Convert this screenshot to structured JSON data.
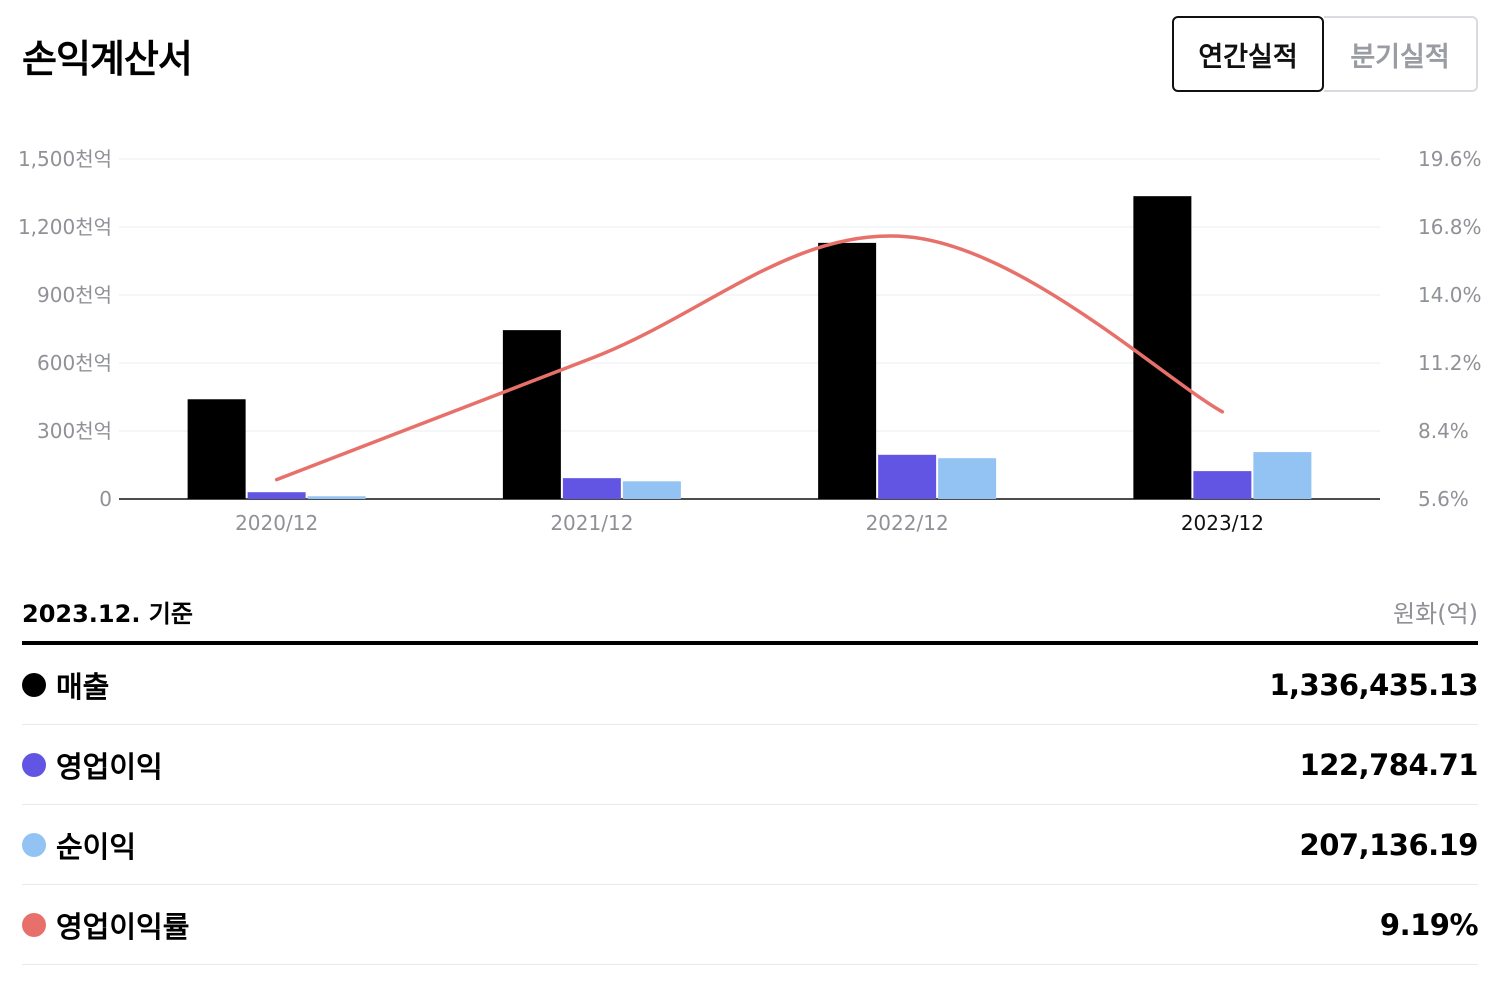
{
  "header": {
    "title": "손익계산서",
    "tabs": [
      "연간실적",
      "분기실적"
    ]
  },
  "colors": {
    "revenue": "#000000",
    "operating_income": "#6355e3",
    "net_income": "#93c3f2",
    "margin": "#e8706a"
  },
  "chart_data": {
    "type": "bar",
    "categories": [
      "2020/12",
      "2021/12",
      "2022/12",
      "2023/12"
    ],
    "series": [
      {
        "name": "매출",
        "axis": "left",
        "values": [
          440,
          745,
          1130,
          1336
        ]
      },
      {
        "name": "영업이익",
        "axis": "left",
        "values": [
          30,
          92,
          195,
          123
        ]
      },
      {
        "name": "순이익",
        "axis": "left",
        "values": [
          12,
          78,
          180,
          207
        ]
      },
      {
        "name": "영업이익률",
        "type": "line",
        "axis": "right",
        "values": [
          6.4,
          11.4,
          16.4,
          9.19
        ]
      }
    ],
    "y_left": {
      "ticks": [
        "0",
        "300천억",
        "600천억",
        "900천억",
        "1,200천억",
        "1,500천억"
      ],
      "ylim": [
        0,
        1500
      ]
    },
    "y_right": {
      "ticks": [
        "5.6%",
        "8.4%",
        "11.2%",
        "14.0%",
        "16.8%",
        "19.6%"
      ],
      "ylim": [
        5.6,
        19.6
      ]
    },
    "grid": true,
    "highlight_category": "2023/12"
  },
  "summary": {
    "basis": "2023.12. 기준",
    "unit": "원화(억)",
    "rows": [
      {
        "label": "매출",
        "value": "1,336,435.13"
      },
      {
        "label": "영업이익",
        "value": "122,784.71"
      },
      {
        "label": "순이익",
        "value": "207,136.19"
      },
      {
        "label": "영업이익률",
        "value": "9.19%"
      }
    ]
  }
}
